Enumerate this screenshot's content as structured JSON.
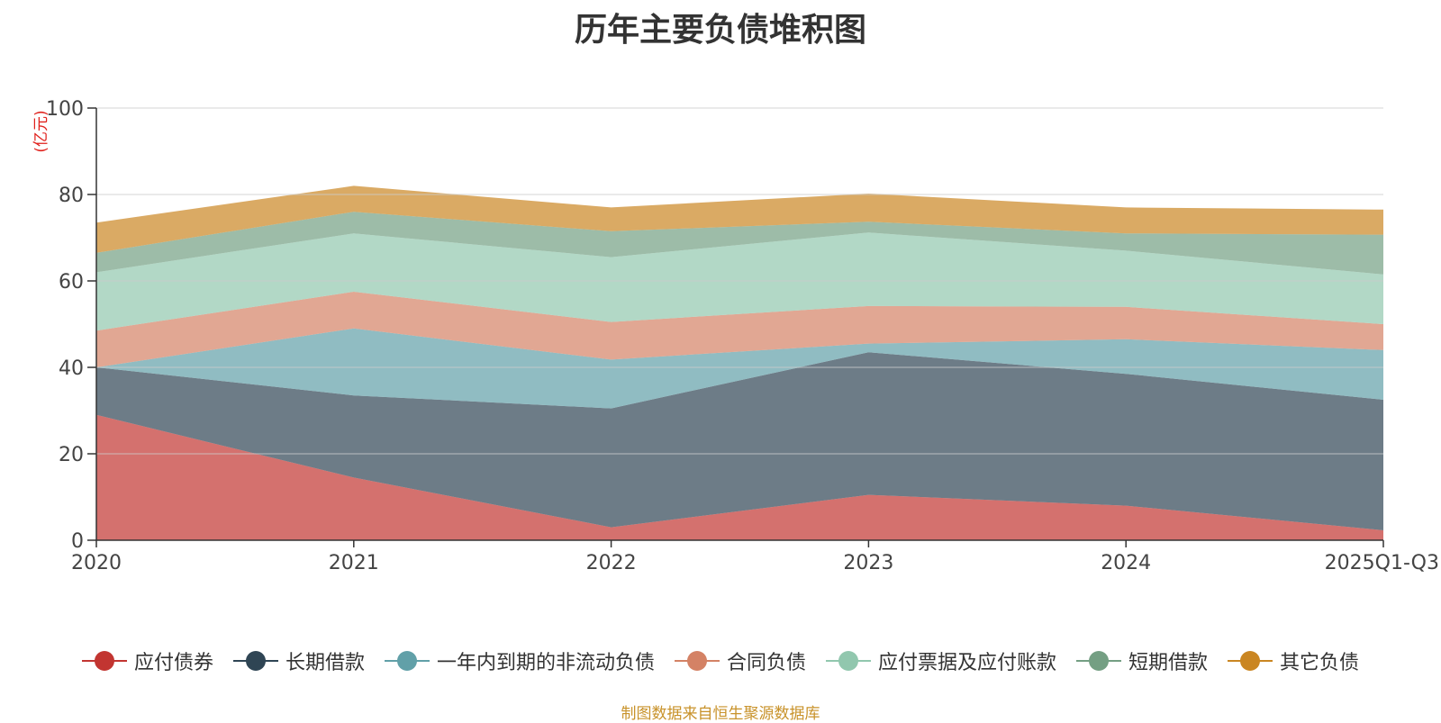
{
  "chart_data": {
    "type": "area",
    "stacked": true,
    "title": "历年主要负债堆积图",
    "unit": "(亿元)",
    "categories": [
      "2020",
      "2021",
      "2022",
      "2023",
      "2024",
      "2025Q1-Q3"
    ],
    "ylim": [
      0,
      100
    ],
    "yticks": [
      0,
      20,
      40,
      60,
      80,
      100
    ],
    "grid": true,
    "legend_position": "bottom",
    "series": [
      {
        "name": "应付债券",
        "color": "#c23531",
        "values": [
          29,
          14.5,
          3,
          10.5,
          8,
          2.3
        ]
      },
      {
        "name": "长期借款",
        "color": "#2f4554",
        "values": [
          11,
          19,
          27.5,
          33,
          30.5,
          30.2
        ]
      },
      {
        "name": "一年内到期的非流动负债",
        "color": "#61a0a8",
        "values": [
          0,
          15.5,
          11.3,
          2,
          8,
          11.5
        ]
      },
      {
        "name": "合同负债",
        "color": "#d48265",
        "values": [
          8.5,
          8.5,
          8.7,
          8.7,
          7.5,
          6
        ]
      },
      {
        "name": "应付票据及应付账款",
        "color": "#91c7ae",
        "values": [
          13.5,
          13.5,
          15,
          17,
          13,
          11.5
        ]
      },
      {
        "name": "短期借款",
        "color": "#749f83",
        "values": [
          4.5,
          5,
          6,
          2.5,
          4,
          9.2
        ]
      },
      {
        "name": "其它负债",
        "color": "#ca8622",
        "values": [
          7,
          6,
          5.5,
          6.5,
          6,
          5.8
        ]
      }
    ]
  },
  "source_note": "制图数据来自恒生聚源数据库"
}
